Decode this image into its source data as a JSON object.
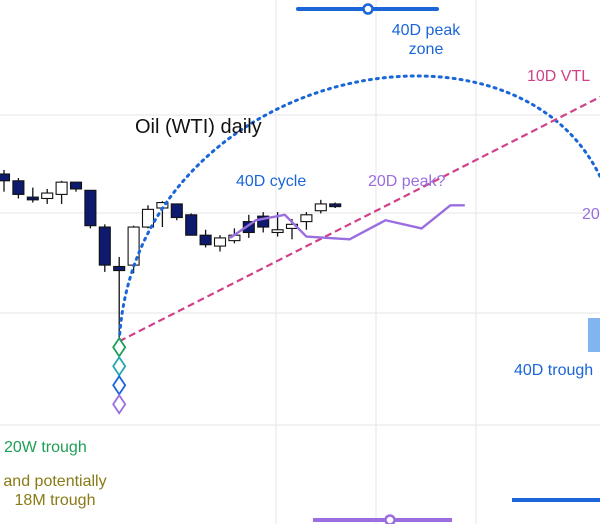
{
  "chart_data": {
    "type": "candlestick",
    "title": "Oil (WTI) daily",
    "colors": {
      "down_fill": "#0d1a6e",
      "up_fill": "#ffffff",
      "wick": "#111111",
      "cycle_arc": "#1a66d9",
      "projection": "#9a6ee0",
      "vtl": "#d0418a",
      "peak_zone": "#1a66d9",
      "trough_20w": "#1e9e57",
      "trough_18m": "#8a7a16",
      "grid": "#e6e6e6"
    },
    "candles": [
      {
        "o": 85,
        "c": 80,
        "h": 88,
        "l": 72
      },
      {
        "o": 80,
        "c": 70,
        "h": 82,
        "l": 67
      },
      {
        "o": 68,
        "c": 66,
        "h": 75,
        "l": 64
      },
      {
        "o": 67,
        "c": 71,
        "h": 74,
        "l": 63
      },
      {
        "o": 70,
        "c": 79,
        "h": 80,
        "l": 63
      },
      {
        "o": 79,
        "c": 74,
        "h": 79,
        "l": 72
      },
      {
        "o": 73,
        "c": 47,
        "h": 73,
        "l": 45
      },
      {
        "o": 46,
        "c": 18,
        "h": 48,
        "l": 13
      },
      {
        "o": 17,
        "c": 14,
        "h": 24,
        "l": -38
      },
      {
        "o": 18,
        "c": 46,
        "h": 47,
        "l": 12
      },
      {
        "o": 46,
        "c": 59,
        "h": 62,
        "l": 45
      },
      {
        "o": 60,
        "c": 64,
        "h": 65,
        "l": 46
      },
      {
        "o": 63,
        "c": 53,
        "h": 63,
        "l": 51
      },
      {
        "o": 55,
        "c": 40,
        "h": 56,
        "l": 40
      },
      {
        "o": 40,
        "c": 33,
        "h": 44,
        "l": 31
      },
      {
        "o": 32,
        "c": 38,
        "h": 40,
        "l": 28
      },
      {
        "o": 36,
        "c": 40,
        "h": 45,
        "l": 34
      },
      {
        "o": 50,
        "c": 42,
        "h": 55,
        "l": 38
      },
      {
        "o": 54,
        "c": 46,
        "h": 57,
        "l": 42
      },
      {
        "o": 42,
        "c": 44,
        "h": 57,
        "l": 39
      },
      {
        "o": 45,
        "c": 48,
        "h": 52,
        "l": 37
      },
      {
        "o": 50,
        "c": 55,
        "h": 57,
        "l": 44
      },
      {
        "o": 58,
        "c": 63,
        "h": 66,
        "l": 56
      },
      {
        "o": 63,
        "c": 61,
        "h": 64,
        "l": 60
      }
    ],
    "projection_20d_cycle": [
      {
        "t": 15.7,
        "v": 38
      },
      {
        "t": 17.5,
        "v": 51
      },
      {
        "t": 19.5,
        "v": 55
      },
      {
        "t": 21.0,
        "v": 39
      },
      {
        "t": 24.0,
        "v": 37
      },
      {
        "t": 26.5,
        "v": 51
      },
      {
        "t": 29.0,
        "v": 45
      },
      {
        "t": 31.0,
        "v": 62
      },
      {
        "t": 32.0,
        "v": 62
      }
    ],
    "annotations": {
      "cycle_40d": "40D cycle",
      "peak_20d": "20D peak?",
      "peak_zone_40d": "40D peak\nzone",
      "vtl_10d": "10D VTL",
      "trough_40d": "40D trough",
      "trough_20w": "20W trough",
      "trough_18m": "and potentially\n18M trough",
      "edge_label_20d": "20"
    }
  }
}
